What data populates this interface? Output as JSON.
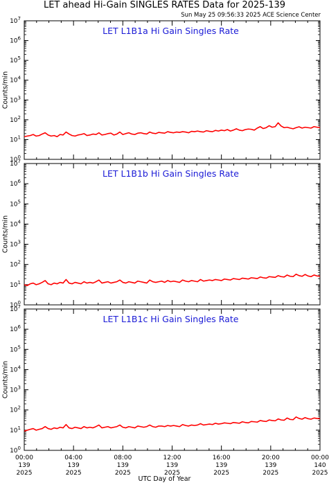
{
  "header": {
    "title": "LET ahead Hi-Gain SINGLES RATES Data for 2025-139",
    "timestamp": "Sun May 25 09:56:33 2025 ACE Science Center"
  },
  "colors": {
    "series": "#ff0000",
    "panel_title": "#1a1ad6",
    "axes": "#000000"
  },
  "chart_data": [
    {
      "type": "line",
      "title": "LET L1B1a Hi Gain Singles Rate",
      "ylabel": "Counts/min",
      "yscale": "log",
      "ylim": [
        1,
        10000000
      ],
      "ytick_exponents": [
        0,
        1,
        2,
        3,
        4,
        5,
        6,
        7
      ],
      "xlim": [
        0,
        24
      ],
      "series": [
        {
          "values": [
            14,
            15,
            16,
            18,
            15,
            16,
            19,
            22,
            17,
            15,
            16,
            14,
            18,
            17,
            24,
            19,
            16,
            15,
            17,
            18,
            20,
            16,
            17,
            19,
            18,
            22,
            17,
            18,
            20,
            21,
            17,
            19,
            24,
            18,
            20,
            22,
            19,
            18,
            21,
            22,
            20,
            19,
            24,
            21,
            20,
            23,
            22,
            21,
            25,
            23,
            22,
            24,
            23,
            25,
            24,
            22,
            26,
            25,
            27,
            25,
            24,
            28,
            26,
            25,
            29,
            27,
            30,
            28,
            32,
            27,
            30,
            35,
            30,
            28,
            32,
            34,
            33,
            30,
            38,
            45,
            36,
            40,
            50,
            42,
            45,
            70,
            48,
            40,
            42,
            38,
            35,
            40,
            44,
            38,
            42,
            40,
            38,
            45,
            42,
            40
          ]
        }
      ]
    },
    {
      "type": "line",
      "title": "LET L1B1b Hi Gain Singles Rate",
      "ylabel": "Counts/min",
      "yscale": "log",
      "ylim": [
        1,
        10000000
      ],
      "ytick_exponents": [
        0,
        1,
        2,
        3,
        4,
        5,
        6,
        7
      ],
      "xlim": [
        0,
        24
      ],
      "series": [
        {
          "values": [
            10,
            9,
            11,
            12,
            10,
            11,
            13,
            16,
            11,
            10,
            12,
            11,
            13,
            12,
            18,
            12,
            11,
            13,
            12,
            11,
            14,
            12,
            13,
            12,
            14,
            17,
            12,
            13,
            14,
            12,
            13,
            14,
            17,
            13,
            12,
            14,
            13,
            12,
            15,
            14,
            13,
            12,
            17,
            14,
            13,
            14,
            15,
            13,
            16,
            14,
            15,
            14,
            13,
            17,
            15,
            14,
            16,
            15,
            14,
            18,
            15,
            16,
            17,
            16,
            18,
            17,
            16,
            19,
            18,
            17,
            20,
            19,
            18,
            21,
            20,
            19,
            22,
            21,
            20,
            24,
            22,
            21,
            25,
            24,
            23,
            28,
            25,
            24,
            30,
            26,
            25,
            33,
            28,
            26,
            32,
            27,
            25,
            30,
            27,
            26
          ]
        }
      ]
    },
    {
      "type": "line",
      "title": "LET L1B1c Hi Gain Singles Rate",
      "ylabel": "Counts/min",
      "yscale": "log",
      "ylim": [
        1,
        10000000
      ],
      "ytick_exponents": [
        0,
        1,
        2,
        3,
        4,
        5,
        6,
        7
      ],
      "xlim": [
        0,
        24
      ],
      "series": [
        {
          "values": [
            9,
            10,
            11,
            12,
            10,
            11,
            12,
            15,
            12,
            11,
            13,
            12,
            14,
            13,
            19,
            13,
            12,
            14,
            13,
            12,
            15,
            13,
            14,
            13,
            15,
            18,
            13,
            14,
            15,
            13,
            14,
            15,
            18,
            14,
            13,
            15,
            14,
            13,
            16,
            15,
            14,
            15,
            18,
            15,
            14,
            16,
            16,
            15,
            17,
            16,
            17,
            16,
            15,
            19,
            17,
            16,
            18,
            17,
            18,
            21,
            18,
            19,
            20,
            19,
            22,
            20,
            21,
            23,
            22,
            21,
            24,
            23,
            22,
            26,
            24,
            23,
            27,
            26,
            25,
            30,
            28,
            27,
            32,
            30,
            29,
            36,
            32,
            31,
            40,
            34,
            33,
            45,
            38,
            35,
            42,
            37,
            35,
            40,
            38,
            37
          ]
        }
      ]
    }
  ],
  "x_axis": {
    "title": "UTC Day of Year",
    "ticks": [
      {
        "time": "00:00",
        "doy": "139",
        "year": "2025"
      },
      {
        "time": "04:00",
        "doy": "139",
        "year": "2025"
      },
      {
        "time": "08:00",
        "doy": "139",
        "year": "2025"
      },
      {
        "time": "12:00",
        "doy": "139",
        "year": "2025"
      },
      {
        "time": "16:00",
        "doy": "139",
        "year": "2025"
      },
      {
        "time": "20:00",
        "doy": "139",
        "year": "2025"
      },
      {
        "time": "00:00",
        "doy": "140",
        "year": "2025"
      }
    ]
  }
}
